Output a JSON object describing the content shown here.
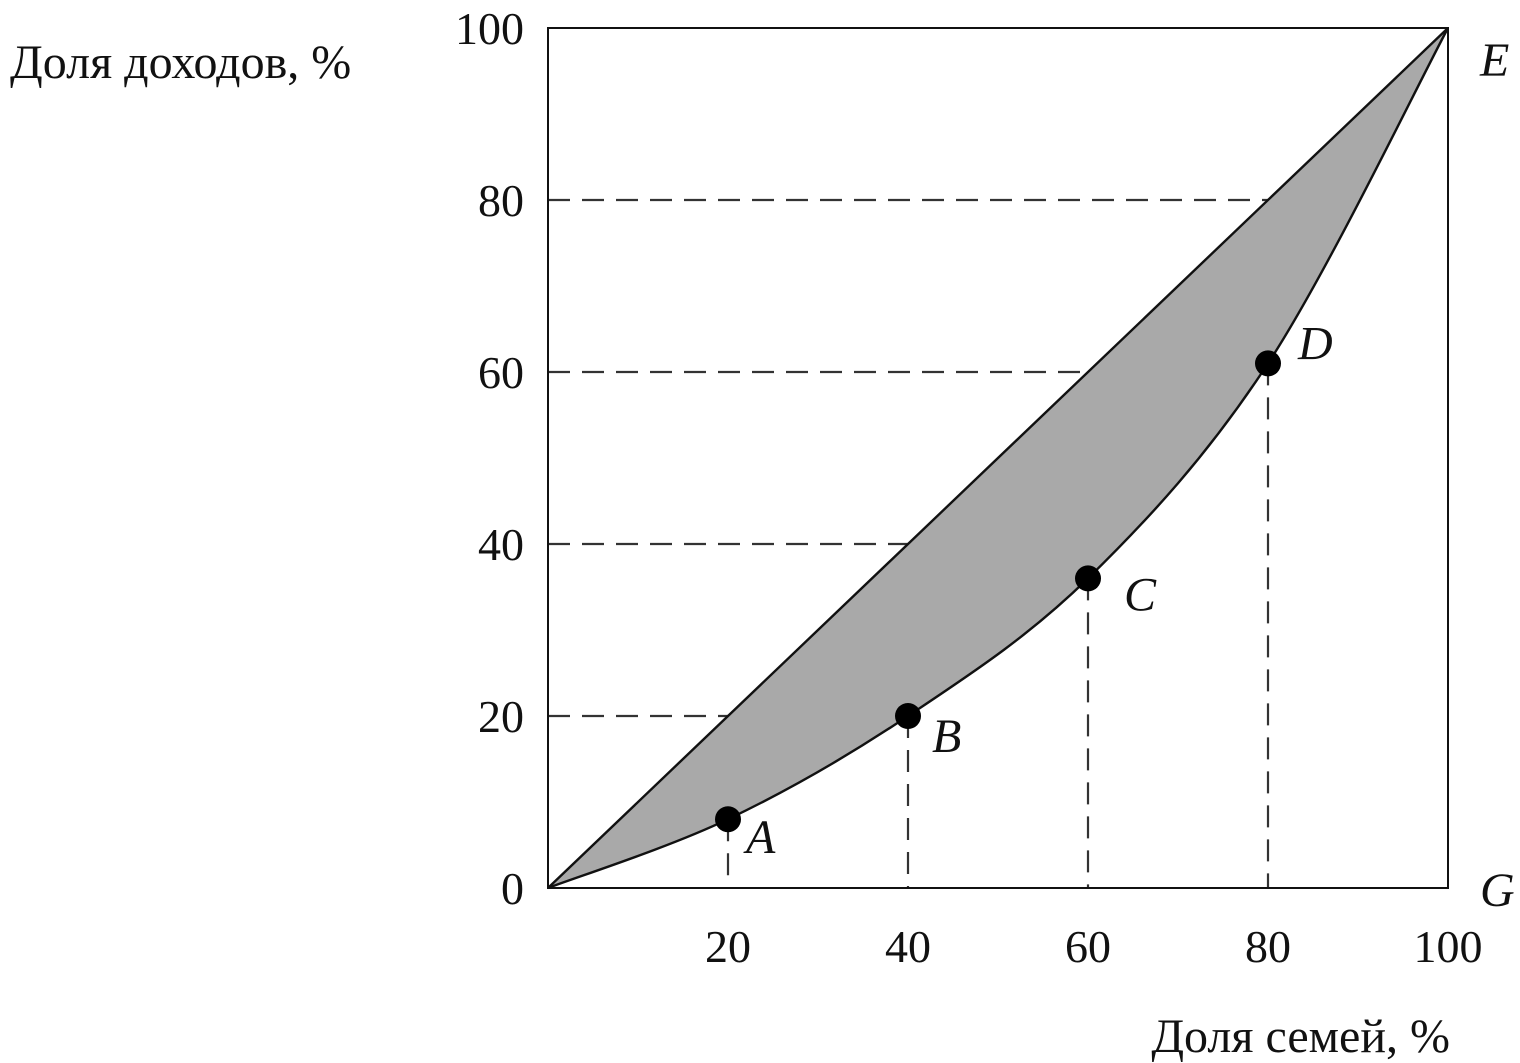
{
  "chart_data": {
    "type": "area",
    "title": "",
    "ylabel": "Доля доходов, %",
    "xlabel": "Доля семей, %",
    "xlim": [
      0,
      100
    ],
    "ylim": [
      0,
      100
    ],
    "x_ticks": [
      "20",
      "40",
      "60",
      "80",
      "100"
    ],
    "y_ticks": [
      "0",
      "20",
      "40",
      "60",
      "80",
      "100"
    ],
    "grid": false,
    "series": [
      {
        "kind": "equality-line",
        "x": [
          0,
          100
        ],
        "y": [
          0,
          100
        ]
      },
      {
        "kind": "lorenz-curve",
        "x": [
          0,
          20,
          40,
          60,
          80,
          100
        ],
        "y": [
          0,
          8,
          20,
          36,
          61,
          100
        ]
      }
    ],
    "points": [
      {
        "label": "A",
        "x": 20,
        "y": 8
      },
      {
        "label": "B",
        "x": 40,
        "y": 20
      },
      {
        "label": "C",
        "x": 60,
        "y": 36
      },
      {
        "label": "D",
        "x": 80,
        "y": 61
      }
    ],
    "corner_labels": [
      {
        "label": "E",
        "x": 100,
        "y": 100
      },
      {
        "label": "G",
        "x": 100,
        "y": 0
      }
    ],
    "reference_lines": [
      {
        "orientation": "horizontal",
        "y": 20,
        "x_to": 20
      },
      {
        "orientation": "horizontal",
        "y": 40,
        "x_to": 40
      },
      {
        "orientation": "horizontal",
        "y": 60,
        "x_to": 60
      },
      {
        "orientation": "horizontal",
        "y": 80,
        "x_to": 80
      },
      {
        "orientation": "vertical",
        "x": 20,
        "y_to": 8
      },
      {
        "orientation": "vertical",
        "x": 40,
        "y_to": 20
      },
      {
        "orientation": "vertical",
        "x": 60,
        "y_to": 36
      },
      {
        "orientation": "vertical",
        "x": 80,
        "y_to": 61
      }
    ],
    "colors": {
      "area_fill": "#a9a9a9",
      "line": "#111111",
      "dashed": "#333333",
      "point": "#000000"
    }
  }
}
